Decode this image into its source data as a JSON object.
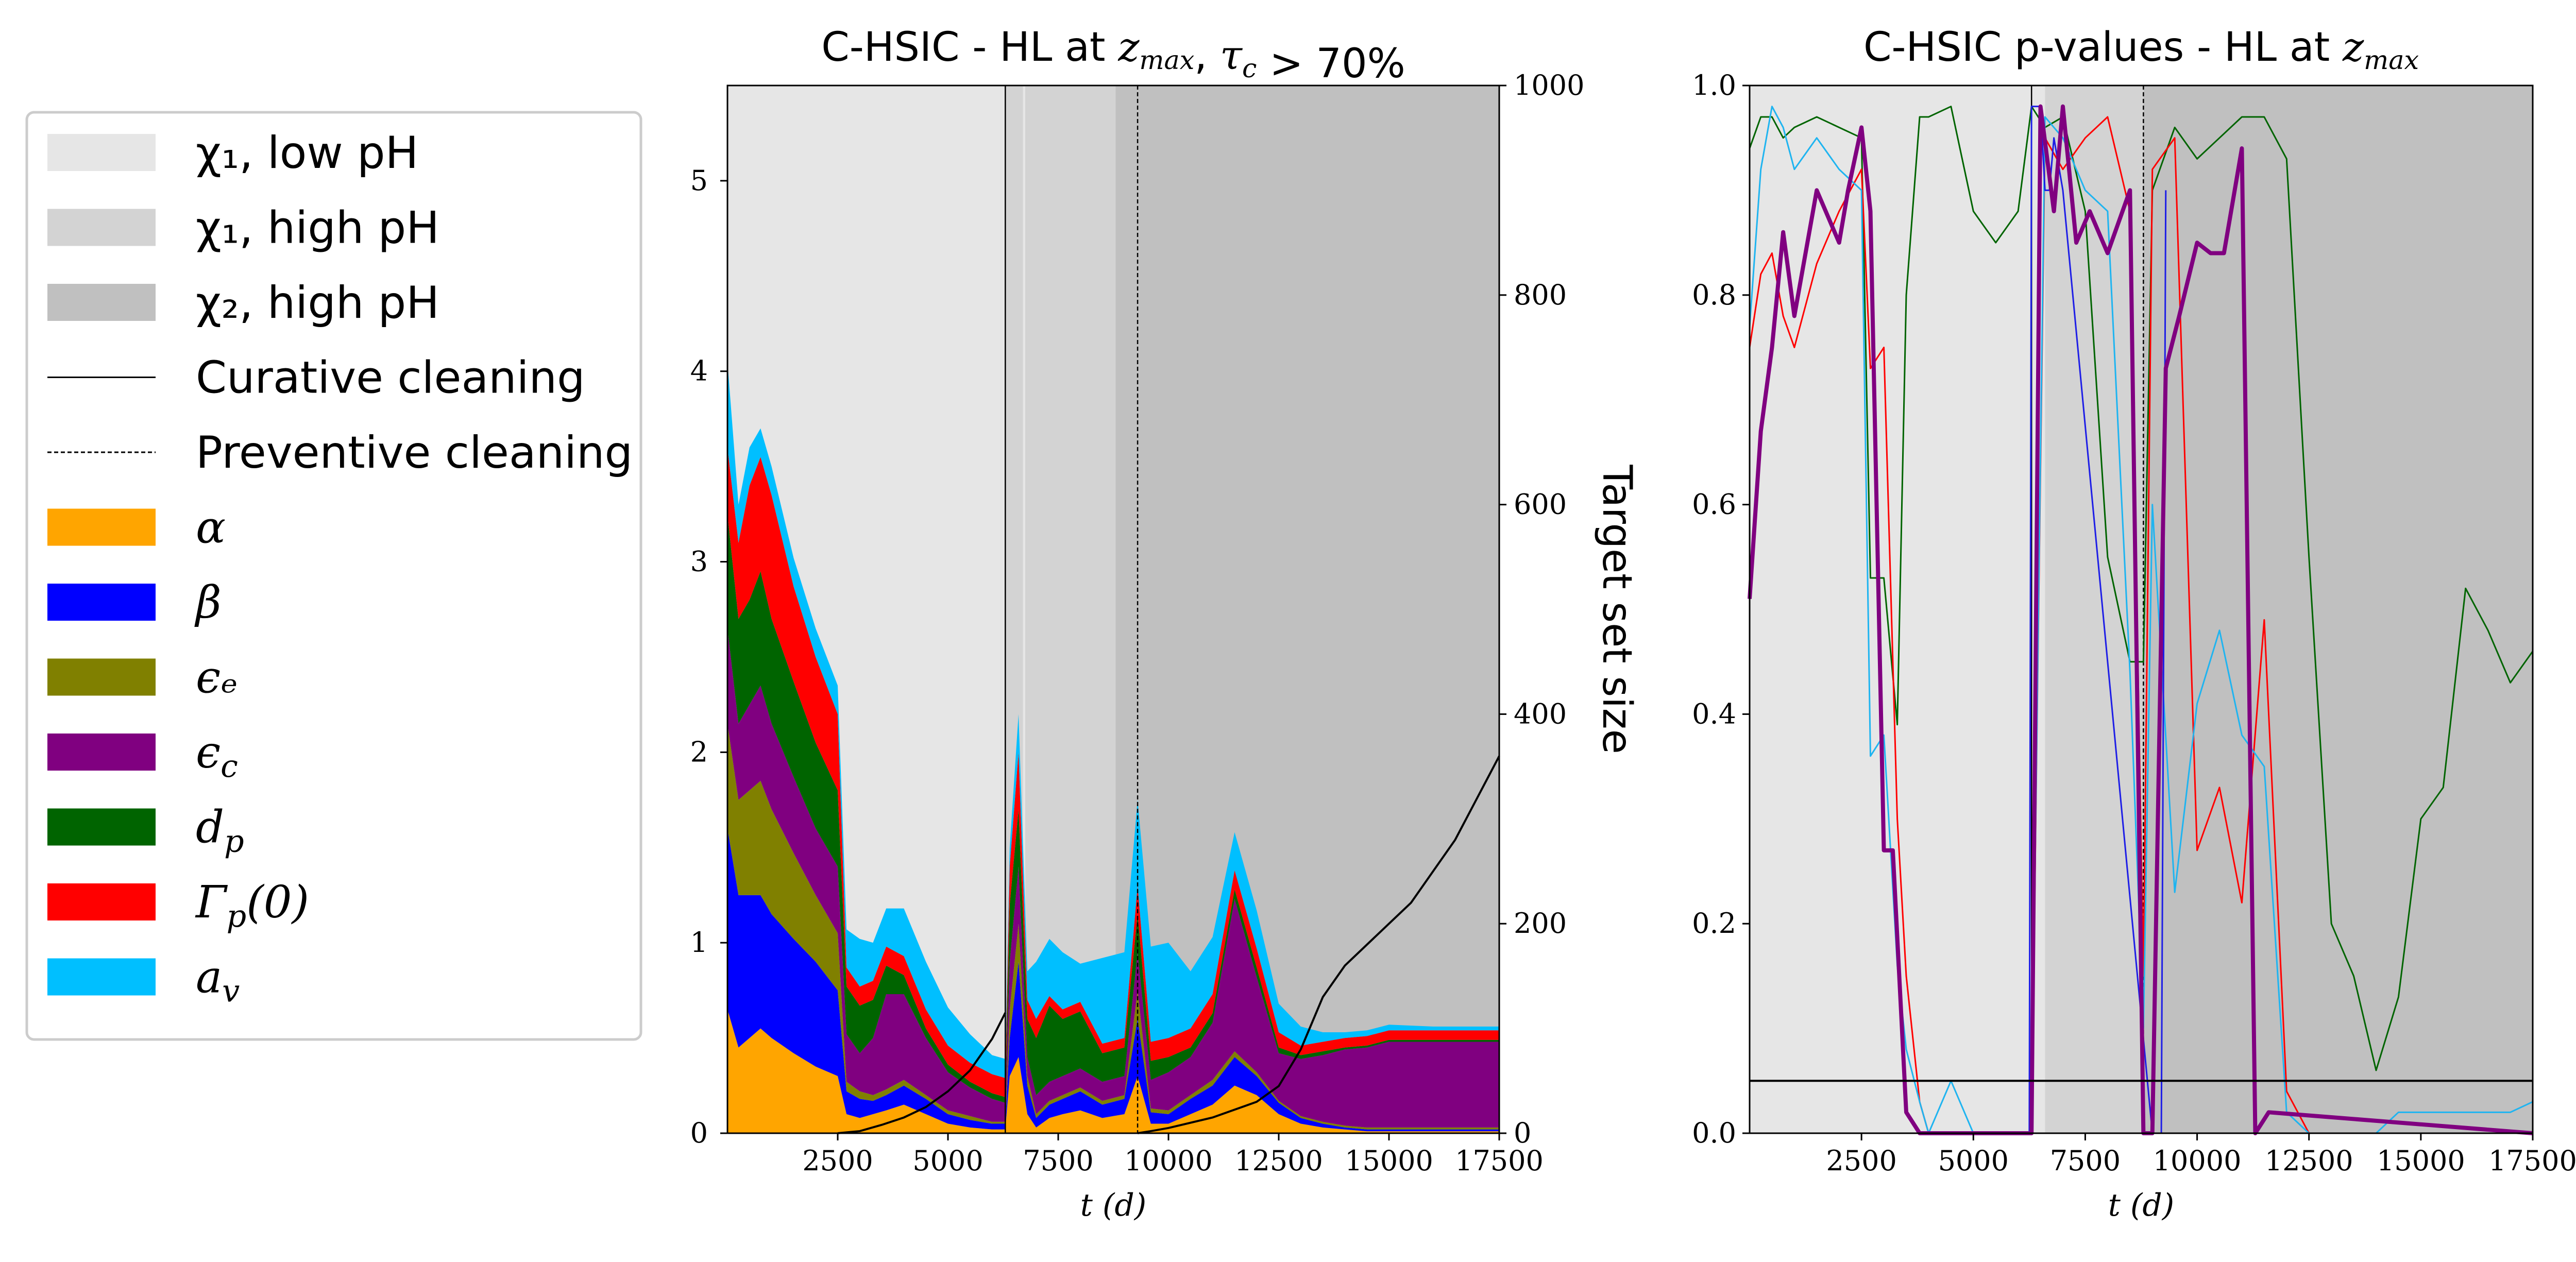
{
  "chart_data": [
    {
      "type": "area",
      "title": "C-HSIC - HL at z_max, τ_c > 70%",
      "xlabel": "t (d)",
      "ylabel": "",
      "y2label": "Target set size",
      "xlim": [
        0,
        17500
      ],
      "ylim": [
        0,
        5.5
      ],
      "y2lim": [
        0,
        1000
      ],
      "xticks": [
        2500,
        5000,
        7500,
        10000,
        12500,
        15000,
        17500
      ],
      "yticks": [
        0,
        1,
        2,
        3,
        4,
        5
      ],
      "y2ticks": [
        0,
        200,
        400,
        600,
        800,
        1000
      ],
      "regions": [
        {
          "name": "χ₁, low pH",
          "x": [
            0,
            6300
          ],
          "color": "#e6e6e6"
        },
        {
          "name": "χ₁, high pH",
          "x": [
            6300,
            6700
          ],
          "color": "#d3d3d3"
        },
        {
          "name": "χ₁, low pH",
          "x": [
            6700,
            6750
          ],
          "color": "#e6e6e6"
        },
        {
          "name": "χ₁, high pH",
          "x": [
            6750,
            8800
          ],
          "color": "#d3d3d3"
        },
        {
          "name": "χ₂, high pH",
          "x": [
            8800,
            17500
          ],
          "color": "#c0c0c0"
        }
      ],
      "vlines": [
        {
          "x": 6300,
          "style": "solid"
        },
        {
          "x": 9300,
          "style": "dashed"
        }
      ],
      "x": [
        0,
        250,
        500,
        750,
        1000,
        1500,
        2000,
        2500,
        2700,
        3000,
        3300,
        3600,
        4000,
        4500,
        5000,
        5500,
        6000,
        6300,
        6400,
        6600,
        6800,
        7000,
        7300,
        7600,
        8000,
        8500,
        9000,
        9300,
        9600,
        10000,
        10500,
        11000,
        11500,
        12000,
        12500,
        13000,
        13500,
        14000,
        14500,
        15000,
        16000,
        17500
      ],
      "series": [
        {
          "name": "α",
          "color": "#ffa500",
          "values": [
            0.65,
            0.45,
            0.5,
            0.55,
            0.5,
            0.42,
            0.35,
            0.3,
            0.1,
            0.08,
            0.1,
            0.12,
            0.15,
            0.1,
            0.05,
            0.03,
            0.02,
            0.02,
            0.3,
            0.4,
            0.1,
            0.03,
            0.08,
            0.1,
            0.12,
            0.08,
            0.1,
            0.3,
            0.05,
            0.05,
            0.1,
            0.15,
            0.25,
            0.2,
            0.1,
            0.05,
            0.03,
            0.02,
            0.01,
            0.01,
            0.01,
            0.01
          ]
        },
        {
          "name": "β",
          "color": "#0000ff",
          "values": [
            0.95,
            0.8,
            0.75,
            0.7,
            0.65,
            0.6,
            0.55,
            0.45,
            0.12,
            0.1,
            0.07,
            0.08,
            0.1,
            0.08,
            0.05,
            0.04,
            0.03,
            0.03,
            0.2,
            0.5,
            0.15,
            0.05,
            0.07,
            0.08,
            0.1,
            0.07,
            0.08,
            0.3,
            0.06,
            0.05,
            0.08,
            0.1,
            0.15,
            0.1,
            0.06,
            0.03,
            0.02,
            0.01,
            0.01,
            0.01,
            0.01,
            0.01
          ]
        },
        {
          "name": "ε_e",
          "color": "#808000",
          "values": [
            0.55,
            0.5,
            0.55,
            0.6,
            0.55,
            0.45,
            0.35,
            0.3,
            0.05,
            0.04,
            0.03,
            0.03,
            0.03,
            0.02,
            0.02,
            0.02,
            0.01,
            0.01,
            0.15,
            0.2,
            0.05,
            0.02,
            0.02,
            0.02,
            0.02,
            0.02,
            0.02,
            0.15,
            0.02,
            0.02,
            0.02,
            0.03,
            0.03,
            0.02,
            0.01,
            0.01,
            0.01,
            0.01,
            0.01,
            0.01,
            0.01,
            0.01
          ]
        },
        {
          "name": "ε_c",
          "color": "#800080",
          "values": [
            0.5,
            0.4,
            0.45,
            0.5,
            0.45,
            0.4,
            0.35,
            0.35,
            0.25,
            0.2,
            0.3,
            0.5,
            0.45,
            0.3,
            0.2,
            0.15,
            0.12,
            0.1,
            0.25,
            0.3,
            0.1,
            0.1,
            0.1,
            0.1,
            0.1,
            0.1,
            0.1,
            0.2,
            0.15,
            0.2,
            0.2,
            0.3,
            0.8,
            0.5,
            0.25,
            0.3,
            0.35,
            0.4,
            0.42,
            0.45,
            0.45,
            0.45
          ]
        },
        {
          "name": "d_p",
          "color": "#006400",
          "values": [
            0.6,
            0.55,
            0.55,
            0.6,
            0.55,
            0.5,
            0.45,
            0.4,
            0.25,
            0.25,
            0.2,
            0.15,
            0.1,
            0.05,
            0.04,
            0.03,
            0.03,
            0.03,
            0.3,
            0.3,
            0.2,
            0.3,
            0.4,
            0.3,
            0.3,
            0.15,
            0.15,
            0.2,
            0.1,
            0.08,
            0.05,
            0.05,
            0.05,
            0.05,
            0.03,
            0.02,
            0.02,
            0.01,
            0.01,
            0.01,
            0.01,
            0.01
          ]
        },
        {
          "name": "Γ_p(0)",
          "color": "#ff0000",
          "values": [
            0.35,
            0.4,
            0.6,
            0.6,
            0.65,
            0.5,
            0.45,
            0.4,
            0.1,
            0.1,
            0.1,
            0.1,
            0.1,
            0.1,
            0.1,
            0.1,
            0.1,
            0.1,
            0.2,
            0.3,
            0.1,
            0.1,
            0.05,
            0.05,
            0.05,
            0.05,
            0.05,
            0.15,
            0.1,
            0.1,
            0.1,
            0.1,
            0.1,
            0.1,
            0.08,
            0.05,
            0.05,
            0.05,
            0.05,
            0.05,
            0.05,
            0.05
          ]
        },
        {
          "name": "a_v",
          "color": "#00bfff",
          "values": [
            0.45,
            0.2,
            0.2,
            0.15,
            0.15,
            0.15,
            0.15,
            0.15,
            0.2,
            0.25,
            0.2,
            0.2,
            0.25,
            0.25,
            0.2,
            0.15,
            0.1,
            0.1,
            0.1,
            0.2,
            0.15,
            0.3,
            0.3,
            0.3,
            0.2,
            0.45,
            0.45,
            0.45,
            0.5,
            0.5,
            0.3,
            0.3,
            0.2,
            0.2,
            0.15,
            0.1,
            0.05,
            0.03,
            0.03,
            0.03,
            0.02,
            0.02
          ]
        }
      ],
      "target_set_size": {
        "axis": "right",
        "color": "#000000",
        "segments": [
          {
            "x": [
              2500,
              3000,
              3500,
              4000,
              4500,
              5000,
              5500,
              6000,
              6300
            ],
            "y": [
              0,
              2,
              8,
              15,
              25,
              40,
              60,
              90,
              115
            ]
          },
          {
            "x": [
              9300,
              9600,
              10000,
              11000,
              12000,
              12500,
              13000,
              13500,
              14000,
              14500,
              15000,
              15500,
              16000,
              16500,
              17000,
              17500
            ],
            "y": [
              0,
              2,
              5,
              15,
              30,
              45,
              80,
              130,
              160,
              180,
              200,
              220,
              250,
              280,
              320,
              360
            ]
          }
        ]
      }
    },
    {
      "type": "line",
      "title": "C-HSIC p-values - HL at z_max",
      "xlabel": "t (d)",
      "ylabel": "",
      "xlim": [
        0,
        17500
      ],
      "ylim": [
        0,
        1.0
      ],
      "xticks": [
        2500,
        5000,
        7500,
        10000,
        12500,
        15000,
        17500
      ],
      "yticks": [
        0.0,
        0.2,
        0.4,
        0.6,
        0.8,
        1.0
      ],
      "threshold": 0.05,
      "regions": [
        {
          "x": [
            0,
            6600
          ],
          "color": "#e6e6e6"
        },
        {
          "x": [
            6600,
            8800
          ],
          "color": "#d3d3d3"
        },
        {
          "x": [
            8800,
            17500
          ],
          "color": "#c0c0c0"
        }
      ],
      "vlines": [
        {
          "x": 6300,
          "style": "solid"
        },
        {
          "x": 8800,
          "style": "dashed"
        }
      ],
      "series": [
        {
          "name": "green",
          "color": "#006400",
          "x": [
            0,
            250,
            500,
            750,
            1000,
            1500,
            2000,
            2500,
            2700,
            3000,
            3300,
            3500,
            3800,
            4000,
            4500,
            5000,
            5500,
            6000,
            6300,
            6600,
            7000,
            7500,
            8000,
            8500,
            8800,
            9000,
            9500,
            10000,
            10500,
            11000,
            11500,
            12000,
            12500,
            13000,
            13500,
            14000,
            14500,
            15000,
            15500,
            16000,
            16500,
            17000,
            17500
          ],
          "y": [
            0.94,
            0.97,
            0.97,
            0.95,
            0.96,
            0.97,
            0.96,
            0.95,
            0.53,
            0.53,
            0.39,
            0.8,
            0.97,
            0.97,
            0.98,
            0.88,
            0.85,
            0.88,
            0.98,
            0.96,
            0.97,
            0.88,
            0.55,
            0.45,
            0.45,
            0.9,
            0.96,
            0.93,
            0.95,
            0.97,
            0.97,
            0.93,
            0.55,
            0.2,
            0.15,
            0.06,
            0.13,
            0.3,
            0.33,
            0.52,
            0.48,
            0.43,
            0.46
          ]
        },
        {
          "name": "red",
          "color": "#ff0000",
          "x": [
            0,
            250,
            500,
            750,
            1000,
            1500,
            2000,
            2500,
            2700,
            3000,
            3300,
            3500,
            3800,
            4000,
            4500,
            5000,
            6000,
            6300,
            6600,
            7000,
            7500,
            8000,
            8500,
            8800,
            9000,
            9500,
            10000,
            10500,
            11000,
            11500,
            12000,
            12500,
            17500
          ],
          "y": [
            0.75,
            0.82,
            0.84,
            0.78,
            0.75,
            0.83,
            0.88,
            0.92,
            0.73,
            0.75,
            0.3,
            0.15,
            0.03,
            0.0,
            0.0,
            0.0,
            0.0,
            0.0,
            0.95,
            0.92,
            0.95,
            0.97,
            0.88,
            0.15,
            0.92,
            0.95,
            0.27,
            0.33,
            0.22,
            0.49,
            0.04,
            0.0,
            0.0
          ]
        },
        {
          "name": "cyan",
          "color": "#1fb4f0",
          "x": [
            0,
            250,
            500,
            750,
            1000,
            1500,
            2000,
            2500,
            2700,
            3000,
            3300,
            3500,
            3800,
            4000,
            4500,
            5000,
            6000,
            6300,
            6600,
            7000,
            7500,
            8000,
            8500,
            8800,
            9000,
            9500,
            10000,
            10500,
            11000,
            11500,
            12000,
            12500,
            14000,
            14500,
            15000,
            16000,
            17000,
            17500
          ],
          "y": [
            0.77,
            0.92,
            0.98,
            0.96,
            0.92,
            0.95,
            0.92,
            0.9,
            0.36,
            0.38,
            0.16,
            0.08,
            0.03,
            0.0,
            0.05,
            0.0,
            0.0,
            0.0,
            0.97,
            0.95,
            0.9,
            0.88,
            0.44,
            0.1,
            0.6,
            0.23,
            0.41,
            0.48,
            0.38,
            0.35,
            0.02,
            0.0,
            0.0,
            0.02,
            0.02,
            0.02,
            0.02,
            0.03
          ]
        },
        {
          "name": "blue",
          "color": "#1e1ee6",
          "x": [
            6100,
            6250,
            6300,
            6400,
            6500,
            6600,
            6700,
            6800,
            7000,
            9000,
            9200,
            9300
          ],
          "y": [
            0.0,
            0.0,
            0.98,
            0.98,
            0.98,
            0.9,
            0.9,
            0.95,
            0.9,
            0.0,
            0.0,
            0.9
          ]
        },
        {
          "name": "purple",
          "color": "#800080",
          "x": [
            0,
            250,
            500,
            750,
            1000,
            1500,
            2000,
            2200,
            2500,
            2700,
            3000,
            3200,
            3500,
            3800,
            4000,
            4500,
            5000,
            6000,
            6300,
            6500,
            6800,
            7000,
            7300,
            7600,
            8000,
            8500,
            8800,
            9000,
            9300,
            9600,
            10000,
            10300,
            10600,
            11000,
            11300,
            11600,
            17500
          ],
          "y": [
            0.51,
            0.67,
            0.75,
            0.86,
            0.78,
            0.9,
            0.85,
            0.9,
            0.96,
            0.88,
            0.27,
            0.27,
            0.02,
            0.0,
            0.0,
            0.0,
            0.0,
            0.0,
            0.0,
            0.98,
            0.88,
            0.98,
            0.85,
            0.88,
            0.84,
            0.9,
            0.0,
            0.0,
            0.73,
            0.78,
            0.85,
            0.84,
            0.84,
            0.94,
            0.0,
            0.02,
            0.0
          ]
        }
      ]
    }
  ],
  "legend": {
    "items": [
      {
        "kind": "patch",
        "color": "#e6e6e6",
        "label": "χ₁, low pH"
      },
      {
        "kind": "patch",
        "color": "#d3d3d3",
        "label": "χ₁, high pH"
      },
      {
        "kind": "patch",
        "color": "#c0c0c0",
        "label": "χ₂, high pH"
      },
      {
        "kind": "line",
        "style": "solid",
        "label": "Curative cleaning"
      },
      {
        "kind": "line",
        "style": "dashed",
        "label": "Preventive cleaning"
      },
      {
        "kind": "patch",
        "color": "#ffa500",
        "label": "α"
      },
      {
        "kind": "patch",
        "color": "#0000ff",
        "label": "β"
      },
      {
        "kind": "patch",
        "color": "#808000",
        "label": "ϵₑ"
      },
      {
        "kind": "patch",
        "color": "#800080",
        "label": "ϵ_c"
      },
      {
        "kind": "patch",
        "color": "#006400",
        "label": "d_p"
      },
      {
        "kind": "patch",
        "color": "#ff0000",
        "label": "Γ_p(0)"
      },
      {
        "kind": "patch",
        "color": "#00bfff",
        "label": "a_v"
      }
    ]
  }
}
